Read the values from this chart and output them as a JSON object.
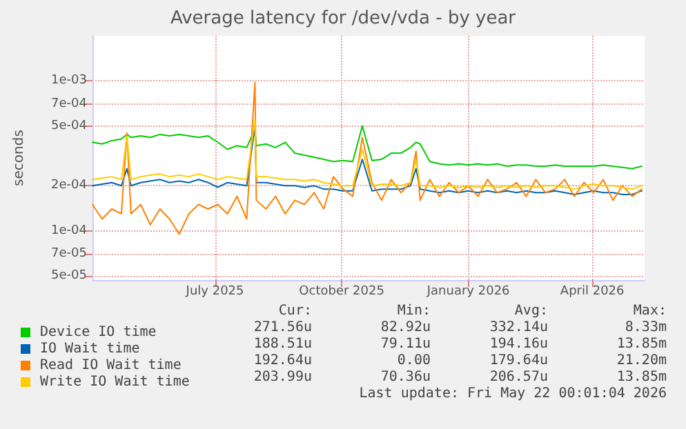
{
  "chart_data": {
    "type": "line",
    "title": "Average latency for /dev/vda - by year",
    "ylabel": "seconds",
    "log": "y",
    "grid": true,
    "legend": "bottom left",
    "xlim": [
      "2025-04-03",
      "2026-05-09"
    ],
    "xticks": [
      {
        "value": "2025-07-01",
        "label": "July 2025"
      },
      {
        "value": "2025-10-01",
        "label": "October 2025"
      },
      {
        "value": "2026-01-01",
        "label": "January 2026"
      },
      {
        "value": "2026-04-01",
        "label": "April 2026"
      }
    ],
    "ylim": [
      4.7e-05,
      0.002
    ],
    "yticks": [
      {
        "value": 5e-05,
        "label": "5e-05"
      },
      {
        "value": 7e-05,
        "label": "7e-05"
      },
      {
        "value": 0.0001,
        "label": "1e-04"
      },
      {
        "value": 0.0002,
        "label": "2e-04"
      },
      {
        "value": 0.0005,
        "label": "5e-04"
      },
      {
        "value": 0.0007,
        "label": "7e-04"
      },
      {
        "value": 0.001,
        "label": "1e-03"
      }
    ],
    "x": [
      "2025-04-03",
      "2025-04-10",
      "2025-04-17",
      "2025-04-24",
      "2025-04-28",
      "2025-05-01",
      "2025-05-08",
      "2025-05-15",
      "2025-05-22",
      "2025-05-29",
      "2025-06-05",
      "2025-06-12",
      "2025-06-19",
      "2025-06-26",
      "2025-07-03",
      "2025-07-10",
      "2025-07-17",
      "2025-07-24",
      "2025-07-30",
      "2025-07-31",
      "2025-08-07",
      "2025-08-14",
      "2025-08-21",
      "2025-08-28",
      "2025-09-04",
      "2025-09-11",
      "2025-09-18",
      "2025-09-25",
      "2025-10-02",
      "2025-10-09",
      "2025-10-16",
      "2025-10-23",
      "2025-10-30",
      "2025-11-06",
      "2025-11-13",
      "2025-11-20",
      "2025-11-24",
      "2025-11-27",
      "2025-12-04",
      "2025-12-11",
      "2025-12-18",
      "2025-12-25",
      "2026-01-01",
      "2026-01-08",
      "2026-01-15",
      "2026-01-22",
      "2026-01-29",
      "2026-02-05",
      "2026-02-12",
      "2026-02-19",
      "2026-02-26",
      "2026-03-05",
      "2026-03-12",
      "2026-03-19",
      "2026-03-26",
      "2026-04-02",
      "2026-04-09",
      "2026-04-16",
      "2026-04-23",
      "2026-04-30",
      "2026-05-07"
    ],
    "series": [
      {
        "name": "Device IO time",
        "color": "#00cc00",
        "values": [
          0.00039,
          0.00038,
          0.0004,
          0.00041,
          0.00044,
          0.00042,
          0.00043,
          0.00042,
          0.00044,
          0.00043,
          0.00044,
          0.00043,
          0.00042,
          0.00043,
          0.00039,
          0.00035,
          0.00037,
          0.00036,
          0.00048,
          0.00037,
          0.00038,
          0.00036,
          0.00039,
          0.00033,
          0.00032,
          0.00031,
          0.0003,
          0.00029,
          0.000295,
          0.00029,
          0.0005,
          0.000295,
          0.0003,
          0.00033,
          0.00033,
          0.00036,
          0.00039,
          0.00038,
          0.00029,
          0.00028,
          0.000275,
          0.00028,
          0.000275,
          0.00028,
          0.000275,
          0.00028,
          0.00027,
          0.000275,
          0.000275,
          0.00027,
          0.00027,
          0.000275,
          0.00027,
          0.00027,
          0.00027,
          0.00027,
          0.000275,
          0.00027,
          0.000265,
          0.00026,
          0.00027
        ]
      },
      {
        "name": "IO Wait time",
        "color": "#0066b3",
        "values": [
          0.0002,
          0.000205,
          0.00021,
          0.0002,
          0.00026,
          0.0002,
          0.00021,
          0.000215,
          0.00022,
          0.00021,
          0.000215,
          0.00021,
          0.00022,
          0.00021,
          0.000195,
          0.00021,
          0.000205,
          0.0002,
          0.0005,
          0.00021,
          0.00021,
          0.000205,
          0.0002,
          0.0002,
          0.000195,
          0.0002,
          0.00019,
          0.00019,
          0.000185,
          0.000185,
          0.0003,
          0.000185,
          0.00019,
          0.00019,
          0.00019,
          0.0002,
          0.00026,
          0.00019,
          0.000185,
          0.00018,
          0.000185,
          0.00018,
          0.000185,
          0.00018,
          0.000185,
          0.00018,
          0.000185,
          0.00018,
          0.000185,
          0.00018,
          0.00018,
          0.000185,
          0.00018,
          0.000175,
          0.00018,
          0.000185,
          0.00018,
          0.00018,
          0.000175,
          0.000175,
          0.000185
        ]
      },
      {
        "name": "Read IO Wait time",
        "color": "#ff8000",
        "values": [
          0.00015,
          0.00012,
          0.00014,
          0.00013,
          0.00045,
          0.00013,
          0.00015,
          0.00011,
          0.00014,
          0.00012,
          9.5e-05,
          0.00013,
          0.00015,
          0.00014,
          0.00015,
          0.00013,
          0.00017,
          0.00012,
          0.00098,
          0.00016,
          0.00014,
          0.00017,
          0.00013,
          0.00016,
          0.00015,
          0.00018,
          0.00014,
          0.00023,
          0.00019,
          0.00017,
          0.00042,
          0.00021,
          0.00016,
          0.00022,
          0.00018,
          0.00021,
          0.00034,
          0.00016,
          0.00022,
          0.00017,
          0.00021,
          0.00018,
          0.0002,
          0.00017,
          0.00022,
          0.00018,
          0.00019,
          0.00021,
          0.00017,
          0.00022,
          0.00018,
          0.00019,
          0.00022,
          0.00017,
          0.00021,
          0.00018,
          0.00022,
          0.00016,
          0.0002,
          0.00017,
          0.00019
        ]
      },
      {
        "name": "Write IO Wait time",
        "color": "#ffcc00",
        "values": [
          0.00022,
          0.000225,
          0.00023,
          0.00022,
          0.00043,
          0.00022,
          0.00023,
          0.000235,
          0.00024,
          0.00023,
          0.000235,
          0.00023,
          0.00024,
          0.00023,
          0.00022,
          0.00023,
          0.000225,
          0.00022,
          0.00055,
          0.00023,
          0.00023,
          0.000225,
          0.00022,
          0.00022,
          0.000215,
          0.00022,
          0.00021,
          0.000205,
          0.0002,
          0.0002,
          0.00035,
          0.0002,
          0.000205,
          0.000205,
          0.0002,
          0.00021,
          0.0003,
          0.0002,
          0.0002,
          0.000195,
          0.0002,
          0.000195,
          0.0002,
          0.000195,
          0.0002,
          0.000195,
          0.0002,
          0.000195,
          0.0002,
          0.000195,
          0.0002,
          0.0002,
          0.000195,
          0.00019,
          0.0002,
          0.000205,
          0.0002,
          0.0002,
          0.000195,
          0.00019,
          0.0002
        ]
      }
    ],
    "annotations": [
      "Cur:",
      "Min:",
      "Avg:",
      "Max:",
      "271.56u",
      "82.92u",
      "332.14u",
      "8.33m",
      "188.51u",
      "79.11u",
      "194.16u",
      "13.85m",
      "192.64u",
      "0.00",
      "179.64u",
      "21.20m",
      "203.99u",
      "70.36u",
      "206.57u",
      "13.85m",
      "Last update: Fri May 22 00:01:04 2026"
    ]
  }
}
